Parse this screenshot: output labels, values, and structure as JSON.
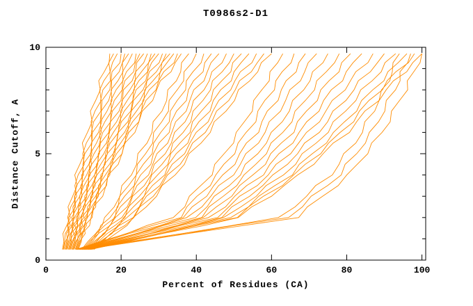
{
  "chart_data": {
    "type": "line",
    "title": "T0986s2-D1",
    "xlabel": "Percent of Residues (CA)",
    "ylabel": "Distance Cutoff, A",
    "xlim": [
      0,
      101
    ],
    "ylim": [
      0,
      10
    ],
    "xticks": [
      0,
      20,
      40,
      60,
      80,
      100
    ],
    "yticks": [
      0,
      5,
      10
    ],
    "y_minor_step": 1,
    "line_color": "#ff8c00",
    "grid": "off",
    "legend": "none",
    "y_samples": [
      0.5,
      2,
      4,
      6,
      8,
      9.7
    ],
    "series": [
      {
        "x": [
          4.4,
          5.9,
          8.3,
          11.0,
          13.9,
          17.0
        ]
      },
      {
        "x": [
          4.6,
          6.2,
          8.8,
          11.7,
          14.8,
          18.0
        ]
      },
      {
        "x": [
          4.8,
          6.5,
          9.3,
          12.3,
          15.6,
          19.0
        ]
      },
      {
        "x": [
          5.1,
          6.8,
          9.7,
          13.0,
          16.4,
          20.0
        ]
      },
      {
        "x": [
          5.3,
          7.1,
          10.2,
          13.6,
          17.2,
          21.0
        ]
      },
      {
        "x": [
          5.5,
          7.5,
          10.7,
          14.2,
          18.0,
          22.0
        ]
      },
      {
        "x": [
          5.7,
          7.8,
          11.1,
          14.8,
          18.8,
          23.0
        ]
      },
      {
        "x": [
          6.0,
          8.1,
          11.6,
          15.5,
          19.6,
          24.0
        ]
      },
      {
        "x": [
          6.2,
          8.4,
          12.1,
          16.1,
          20.4,
          25.0
        ]
      },
      {
        "x": [
          6.4,
          8.7,
          12.5,
          16.7,
          21.3,
          26.0
        ]
      },
      {
        "x": [
          6.6,
          9.0,
          13.0,
          17.4,
          22.1,
          27.0
        ]
      },
      {
        "x": [
          6.9,
          9.4,
          13.5,
          18.0,
          22.9,
          28.0
        ]
      },
      {
        "x": [
          7.1,
          9.7,
          13.9,
          18.6,
          23.7,
          29.0
        ]
      },
      {
        "x": [
          7.3,
          10.0,
          14.4,
          19.3,
          24.5,
          30.0
        ]
      },
      {
        "x": [
          7.5,
          10.3,
          14.9,
          19.9,
          25.3,
          31.0
        ]
      },
      {
        "x": [
          7.8,
          10.6,
          15.3,
          20.6,
          26.1,
          32.0
        ]
      },
      {
        "x": [
          8.0,
          10.9,
          15.8,
          21.2,
          26.9,
          33.0
        ]
      },
      {
        "x": [
          8.2,
          11.3,
          16.3,
          21.8,
          27.7,
          34.0
        ]
      },
      {
        "x": [
          8.4,
          11.6,
          16.7,
          22.5,
          28.6,
          35.0
        ]
      },
      {
        "x": [
          8.6,
          11.9,
          17.2,
          23.1,
          29.4,
          36.0
        ]
      },
      {
        "x": [
          9.5,
          16.3,
          22.4,
          27.9,
          33.1,
          38.0
        ]
      },
      {
        "x": [
          9.8,
          17.0,
          23.5,
          29.3,
          34.8,
          40.0
        ]
      },
      {
        "x": [
          10.1,
          17.7,
          24.5,
          30.7,
          36.5,
          42.0
        ]
      },
      {
        "x": [
          10.4,
          18.4,
          25.6,
          32.1,
          38.2,
          44.0
        ]
      },
      {
        "x": [
          10.7,
          19.1,
          26.7,
          33.5,
          39.9,
          46.0
        ]
      },
      {
        "x": [
          11.0,
          19.8,
          27.7,
          34.9,
          41.6,
          48.0
        ]
      },
      {
        "x": [
          11.3,
          20.5,
          28.8,
          36.3,
          43.3,
          50.0
        ]
      },
      {
        "x": [
          11.6,
          21.2,
          29.8,
          37.7,
          45.1,
          52.0
        ]
      },
      {
        "x": [
          11.9,
          21.9,
          30.9,
          39.1,
          46.8,
          54.0
        ]
      },
      {
        "x": [
          12.2,
          22.6,
          32.0,
          40.5,
          48.5,
          56.0
        ]
      },
      {
        "x": [
          12.5,
          23.2,
          33.0,
          41.9,
          50.2,
          58.0
        ]
      },
      {
        "x": [
          12.8,
          23.9,
          34.1,
          43.3,
          51.9,
          60.0
        ]
      },
      {
        "x": [
          8.0,
          33.9,
          43.6,
          51.2,
          57.4,
          63.0
        ]
      },
      {
        "x": [
          8.3,
          35.3,
          45.6,
          53.5,
          60.1,
          66.0
        ]
      },
      {
        "x": [
          8.6,
          36.7,
          47.5,
          55.9,
          62.8,
          69.0
        ]
      },
      {
        "x": [
          8.9,
          38.1,
          49.4,
          58.2,
          65.5,
          72.0
        ]
      },
      {
        "x": [
          9.2,
          39.5,
          51.4,
          60.6,
          68.2,
          75.0
        ]
      },
      {
        "x": [
          9.5,
          40.9,
          53.3,
          62.9,
          70.9,
          78.0
        ]
      },
      {
        "x": [
          9.8,
          42.3,
          55.2,
          65.3,
          73.6,
          81.0
        ]
      },
      {
        "x": [
          10.1,
          43.7,
          57.2,
          67.6,
          76.3,
          84.0
        ]
      },
      {
        "x": [
          10.4,
          45.1,
          59.1,
          69.9,
          79.0,
          87.0
        ]
      },
      {
        "x": [
          10.7,
          46.5,
          61.0,
          72.3,
          81.7,
          90.0
        ]
      },
      {
        "x": [
          11.0,
          47.9,
          63.0,
          74.6,
          84.4,
          93.0
        ]
      },
      {
        "x": [
          11.3,
          49.3,
          64.9,
          77.0,
          87.0,
          96.0
        ]
      },
      {
        "x": [
          11.6,
          50.2,
          66.2,
          78.6,
          88.8,
          98.0
        ]
      },
      {
        "x": [
          11.9,
          51.2,
          67.5,
          80.1,
          90.6,
          100.0
        ]
      },
      {
        "x": [
          9.0,
          62.5,
          75.7,
          84.0,
          89.9,
          94.0
        ]
      },
      {
        "x": [
          9.6,
          64.3,
          78.1,
          86.7,
          92.7,
          97.0
        ]
      },
      {
        "x": [
          10.2,
          66.6,
          80.6,
          89.4,
          95.6,
          100.0
        ]
      }
    ]
  }
}
